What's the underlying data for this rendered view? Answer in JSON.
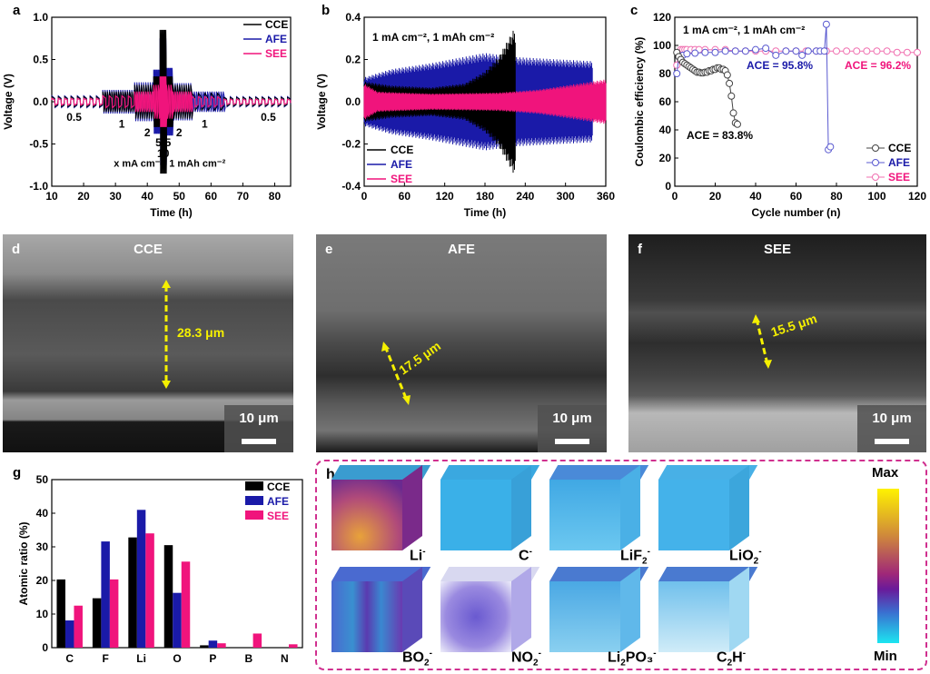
{
  "colors": {
    "CCE": "#000000",
    "AFE": "#1a1aa8",
    "SEE": "#f0147c"
  },
  "chart_data": [
    {
      "id": "a",
      "type": "line",
      "panel_label": "a",
      "xlabel": "Time (h)",
      "ylabel": "Voltage (V)",
      "xlim": [
        10,
        85
      ],
      "ylim": [
        -1.0,
        1.0
      ],
      "xticks": [
        10,
        20,
        30,
        40,
        50,
        60,
        70,
        80
      ],
      "yticks": [
        "-1.0",
        "-0.5",
        "0.0",
        "0.5",
        "1.0"
      ],
      "annotation": "x mA cm⁻², 1 mAh cm⁻²",
      "rate_labels": [
        {
          "text": "0.5",
          "x": 17,
          "y": -0.12
        },
        {
          "text": "1",
          "x": 32,
          "y": -0.2
        },
        {
          "text": "2",
          "x": 40,
          "y": -0.3
        },
        {
          "text": "5",
          "x": 43.5,
          "y": -0.42
        },
        {
          "text": "10",
          "x": 45,
          "y": -0.55
        },
        {
          "text": "5",
          "x": 46.5,
          "y": -0.42
        },
        {
          "text": "2",
          "x": 50,
          "y": -0.3
        },
        {
          "text": "1",
          "x": 58,
          "y": -0.2
        },
        {
          "text": "0.5",
          "x": 78,
          "y": -0.12
        }
      ],
      "legend": [
        "CCE",
        "AFE",
        "SEE"
      ],
      "legend_position": "top-right",
      "series": [
        {
          "name": "CCE",
          "segments": [
            [
              10,
              26,
              0.06
            ],
            [
              26,
              36,
              0.12
            ],
            [
              36,
              42,
              0.2
            ],
            [
              42,
              44,
              0.3
            ],
            [
              44,
              46,
              0.85
            ],
            [
              46,
              48,
              0.3
            ],
            [
              48,
              54,
              0.2
            ],
            [
              54,
              64,
              0.1
            ],
            [
              64,
              85,
              0.05
            ]
          ]
        },
        {
          "name": "AFE",
          "segments": [
            [
              10,
              26,
              0.07
            ],
            [
              26,
              36,
              0.14
            ],
            [
              36,
              42,
              0.23
            ],
            [
              42,
              44,
              0.38
            ],
            [
              44,
              46,
              0.75
            ],
            [
              46,
              48,
              0.4
            ],
            [
              48,
              54,
              0.22
            ],
            [
              54,
              64,
              0.12
            ],
            [
              64,
              85,
              0.06
            ]
          ]
        },
        {
          "name": "SEE",
          "segments": [
            [
              10,
              26,
              0.04
            ],
            [
              26,
              36,
              0.07
            ],
            [
              36,
              42,
              0.12
            ],
            [
              42,
              44,
              0.2
            ],
            [
              44,
              46,
              0.3
            ],
            [
              46,
              48,
              0.2
            ],
            [
              48,
              54,
              0.12
            ],
            [
              54,
              64,
              0.06
            ],
            [
              64,
              85,
              0.03
            ]
          ]
        }
      ]
    },
    {
      "id": "b",
      "type": "line",
      "panel_label": "b",
      "xlabel": "Time (h)",
      "ylabel": "Voltage (V)",
      "xlim": [
        0,
        360
      ],
      "ylim": [
        -0.4,
        0.4
      ],
      "xticks": [
        0,
        60,
        120,
        180,
        240,
        300,
        360
      ],
      "yticks": [
        "-0.4",
        "-0.2",
        "0.0",
        "0.2",
        "0.4"
      ],
      "annotation": "1 mA cm⁻², 1 mAh cm⁻²",
      "legend": [
        "CCE",
        "AFE",
        "SEE"
      ],
      "legend_position": "bottom-left",
      "series": [
        {
          "name": "CCE",
          "end_time": 225,
          "envelope": [
            [
              0,
              0.1
            ],
            [
              40,
              0.08
            ],
            [
              100,
              0.07
            ],
            [
              150,
              0.09
            ],
            [
              180,
              0.15
            ],
            [
              200,
              0.22
            ],
            [
              222,
              0.35
            ]
          ]
        },
        {
          "name": "AFE",
          "end_time": 340,
          "envelope": [
            [
              0,
              0.12
            ],
            [
              40,
              0.16
            ],
            [
              100,
              0.19
            ],
            [
              180,
              0.24
            ],
            [
              225,
              0.22
            ],
            [
              280,
              0.21
            ],
            [
              340,
              0.2
            ]
          ]
        },
        {
          "name": "SEE",
          "end_time": 360,
          "envelope": [
            [
              0,
              0.09
            ],
            [
              20,
              0.05
            ],
            [
              100,
              0.04
            ],
            [
              200,
              0.045
            ],
            [
              260,
              0.06
            ],
            [
              360,
              0.11
            ]
          ]
        }
      ]
    },
    {
      "id": "c",
      "type": "scatter",
      "panel_label": "c",
      "xlabel": "Cycle number (n)",
      "ylabel": "Coulombic efficiency (%)",
      "xlim": [
        0,
        120
      ],
      "ylim": [
        0,
        120
      ],
      "xticks": [
        0,
        20,
        40,
        60,
        80,
        100,
        120
      ],
      "yticks": [
        0,
        20,
        40,
        60,
        80,
        100,
        120
      ],
      "annotation": "1 mA cm⁻², 1 mAh cm⁻²",
      "annotations": [
        {
          "text": "ACE = 95.8%",
          "series": "AFE"
        },
        {
          "text": "ACE = 96.2%",
          "series": "SEE"
        },
        {
          "text": "ACE = 83.8%",
          "series": "CCE"
        }
      ],
      "legend": [
        "CCE",
        "AFE",
        "SEE"
      ],
      "legend_position": "bottom-right",
      "series": [
        {
          "name": "CCE",
          "x": [
            1,
            2,
            3,
            4,
            5,
            6,
            7,
            8,
            9,
            10,
            11,
            12,
            13,
            14,
            15,
            16,
            17,
            18,
            19,
            20,
            21,
            22,
            23,
            24,
            25,
            26,
            27,
            28,
            29,
            30,
            31
          ],
          "y": [
            95,
            92,
            90,
            88,
            87,
            86,
            85,
            84,
            83,
            82,
            81,
            81,
            80.5,
            80.5,
            81,
            81,
            82,
            82,
            83,
            83,
            84,
            84,
            83,
            83,
            82,
            79,
            73,
            64,
            52,
            45,
            44
          ]
        },
        {
          "name": "AFE",
          "x": [
            1,
            2,
            4,
            6,
            10,
            15,
            20,
            25,
            30,
            35,
            40,
            45,
            50,
            55,
            60,
            63,
            66,
            70,
            72,
            74,
            75,
            76,
            77
          ],
          "y": [
            80,
            92,
            93,
            94,
            94.5,
            95,
            95,
            96,
            96,
            96,
            97,
            98,
            93,
            96,
            96,
            93,
            96,
            96,
            96,
            96,
            115,
            26,
            28
          ]
        },
        {
          "name": "SEE",
          "x": [
            1,
            2,
            3,
            4,
            5,
            6,
            8,
            10,
            12,
            15,
            20,
            25,
            30,
            35,
            40,
            45,
            50,
            55,
            60,
            65,
            70,
            75,
            80,
            85,
            90,
            95,
            100,
            105,
            110,
            115,
            120
          ],
          "y": [
            86,
            95,
            97,
            97,
            97,
            97,
            97,
            97,
            97,
            97,
            97,
            97,
            96,
            96,
            96,
            96,
            96,
            96,
            96,
            96,
            96,
            96,
            96,
            96,
            96,
            96,
            96,
            96,
            95,
            95,
            95
          ]
        }
      ]
    },
    {
      "id": "g",
      "type": "bar",
      "panel_label": "g",
      "xlabel": "",
      "ylabel": "Atomic ratio (%)",
      "ylim": [
        0,
        50
      ],
      "yticks": [
        0,
        10,
        20,
        30,
        40,
        50
      ],
      "categories": [
        "C",
        "F",
        "Li",
        "O",
        "P",
        "B",
        "N"
      ],
      "legend": [
        "CCE",
        "AFE",
        "SEE"
      ],
      "legend_position": "top-right",
      "series": [
        {
          "name": "CCE",
          "values": [
            20.3,
            14.7,
            32.8,
            30.5,
            0.7,
            0,
            0
          ]
        },
        {
          "name": "AFE",
          "values": [
            8.1,
            31.6,
            41.0,
            16.3,
            2.1,
            0,
            0
          ]
        },
        {
          "name": "SEE",
          "values": [
            12.5,
            20.3,
            34.0,
            25.6,
            1.3,
            4.2,
            1.0
          ]
        }
      ]
    }
  ],
  "sem": [
    {
      "label": "d",
      "title": "CCE",
      "thickness": "28.3 μm",
      "scale": "10 μm"
    },
    {
      "label": "e",
      "title": "AFE",
      "thickness": "17.5 μm",
      "scale": "10 μm"
    },
    {
      "label": "f",
      "title": "SEE",
      "thickness": "15.5 μm",
      "scale": "10 μm"
    }
  ],
  "tof": {
    "label": "h",
    "colorbar_max": "Max",
    "colorbar_min": "Min",
    "ions": [
      {
        "base": "Li",
        "sub": "",
        "tail": "",
        "sup": "-"
      },
      {
        "base": "C",
        "sub": "",
        "tail": "",
        "sup": "-"
      },
      {
        "base": "LiF",
        "sub": "2",
        "tail": "",
        "sup": "-"
      },
      {
        "base": "LiO",
        "sub": "2",
        "tail": "",
        "sup": "-"
      },
      {
        "base": "BO",
        "sub": "2",
        "tail": "",
        "sup": "-"
      },
      {
        "base": "NO",
        "sub": "2",
        "tail": "",
        "sup": "-"
      },
      {
        "base": "Li",
        "sub": "2",
        "tail": "PO₃",
        "sup": "-"
      },
      {
        "base": "C",
        "sub": "2",
        "tail": "H",
        "sup": "-"
      }
    ]
  }
}
